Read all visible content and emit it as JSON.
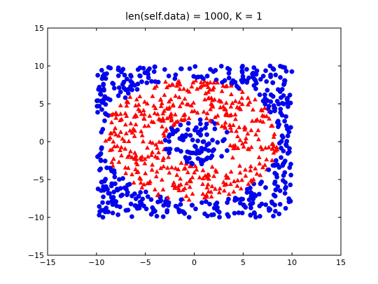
{
  "chart_data": {
    "type": "scatter",
    "title": "len(self.data) = 1000, K = 1",
    "xlabel": "",
    "ylabel": "",
    "xlim": [
      -15,
      15
    ],
    "ylim": [
      -15,
      15
    ],
    "xticks": [
      -15,
      -10,
      -5,
      0,
      5,
      10,
      15
    ],
    "yticks": [
      -15,
      -10,
      -5,
      0,
      5,
      10,
      15
    ],
    "xtick_labels": [
      "−15",
      "−10",
      "−5",
      "0",
      "5",
      "10",
      "15"
    ],
    "ytick_labels": [
      "−15",
      "−10",
      "−5",
      "0",
      "5",
      "10",
      "15"
    ],
    "grid": false,
    "legend": "none",
    "data_region": {
      "x_range": [
        -10,
        10
      ],
      "y_range": [
        -10,
        10
      ],
      "distribution": "uniform",
      "point_count": 1000
    },
    "series": [
      {
        "class": "outer",
        "marker": "circle",
        "color": "#0000ff",
        "region": "outside ellipse with semi-axes 9.0 (x) and 8.0 (y), centered at (-0.3, 0.3)"
      },
      {
        "class": "ring",
        "marker": "triangle",
        "color": "#ff0000",
        "region": "elliptical ring between inner semi-axes 3.4 (x) / 3.0 (y) and outer semi-axes 9.0 (x) / 8.0 (y)"
      },
      {
        "class": "core",
        "marker": "circle",
        "color": "#0000ff",
        "region": "inside ellipse with semi-axes 3.4 (x) and 3.0 (y), centered at (0.3, 0.0)"
      }
    ]
  }
}
